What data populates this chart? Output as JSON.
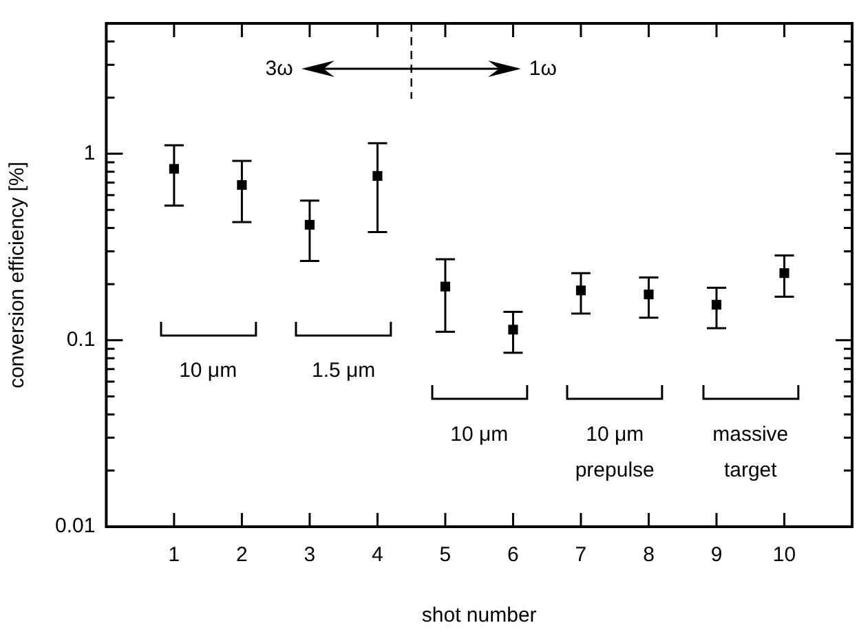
{
  "chart_data": {
    "type": "scatter",
    "xlabel": "shot number",
    "ylabel": "conversion efficiency [%]",
    "x": [
      1,
      2,
      3,
      4,
      5,
      6,
      7,
      8,
      9,
      10
    ],
    "series": [
      {
        "color": "#000000",
        "values": [
          0.83,
          0.68,
          0.416,
          0.76,
          0.194,
          0.114,
          0.185,
          0.176,
          0.155,
          0.229
        ],
        "errors": [
          [
            0.527,
            1.11
          ],
          [
            0.43,
            0.916
          ],
          [
            0.266,
            0.56
          ],
          [
            0.38,
            1.14
          ],
          [
            0.111,
            0.272
          ],
          [
            0.0857,
            0.142
          ],
          [
            0.139,
            0.229
          ],
          [
            0.132,
            0.217
          ],
          [
            0.116,
            0.191
          ],
          [
            0.171,
            0.285
          ]
        ]
      }
    ],
    "marker": "square",
    "log": "y",
    "grid": false,
    "xlim": [
      0,
      11
    ],
    "xticks": [
      1,
      2,
      3,
      4,
      5,
      6,
      7,
      8,
      9,
      10
    ],
    "ylim": [
      0.01,
      5
    ],
    "yticks": [
      0.01,
      {
        "value": 0.02,
        "label": null
      },
      {
        "value": 0.03,
        "label": null
      },
      {
        "value": 0.04,
        "label": null
      },
      {
        "value": 0.05,
        "label": null
      },
      {
        "value": 0.06,
        "label": null
      },
      {
        "value": 0.07,
        "label": null
      },
      {
        "value": 0.08,
        "label": null
      },
      {
        "value": 0.09,
        "label": null
      },
      0.1,
      {
        "value": 0.2,
        "label": null
      },
      {
        "value": 0.3,
        "label": null
      },
      {
        "value": 0.4,
        "label": null
      },
      {
        "value": 0.5,
        "label": null
      },
      {
        "value": 0.6,
        "label": null
      },
      {
        "value": 0.7,
        "label": null
      },
      {
        "value": 0.8,
        "label": null
      },
      {
        "value": 0.9,
        "label": null
      },
      1,
      {
        "value": 2,
        "label": null
      },
      {
        "value": 3,
        "label": null
      },
      {
        "value": 4,
        "label": null
      }
    ],
    "ref_lines": [
      {
        "axis": "x",
        "value": 4.5,
        "color": "#000000",
        "line_style": "dashed"
      }
    ],
    "annotations": [
      "3ω",
      "1ω",
      "10 μm",
      "1.5 μm",
      "10 μm",
      "10 μm\nprepulse",
      "massive\ntarget"
    ]
  }
}
